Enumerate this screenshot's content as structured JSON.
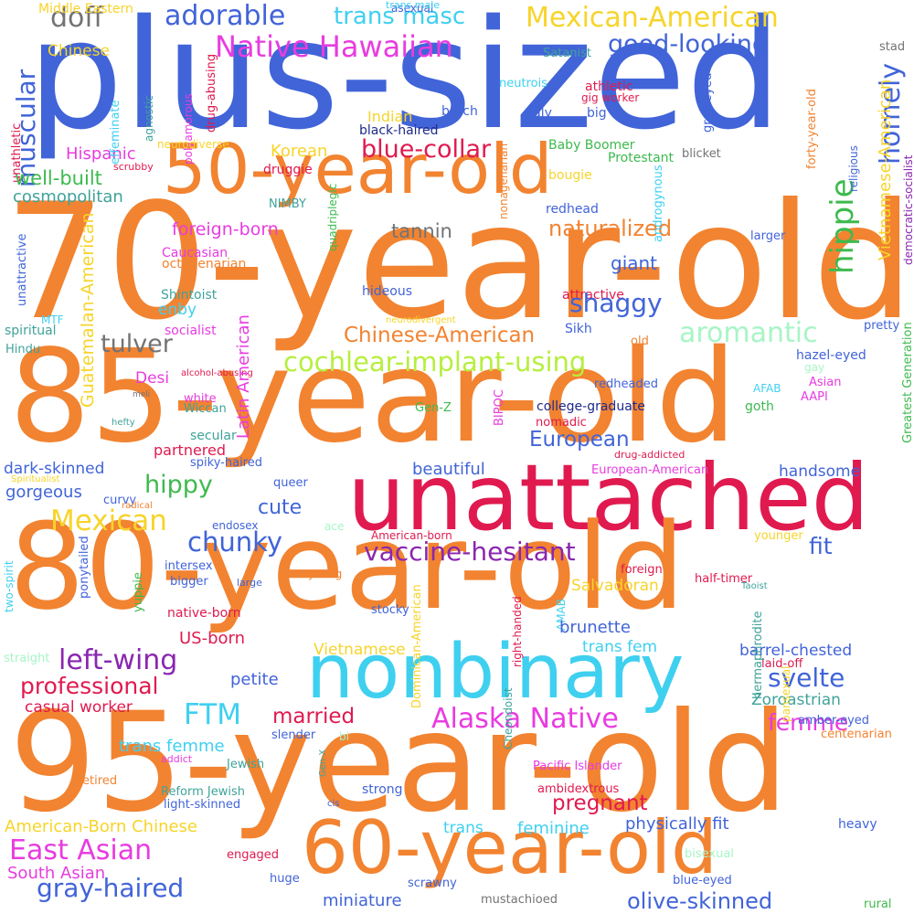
{
  "palette": {
    "orange": "#f28330",
    "blue": "#4164d8",
    "crimson": "#e01a4f",
    "cyan": "#3fd0f0",
    "magenta": "#e83ce0",
    "yellow": "#f7d42a",
    "green": "#3dba4e",
    "mint": "#a7f5c6",
    "lime": "#b6ef3e",
    "purple": "#8a26b0",
    "gray": "#737373",
    "teal": "#3fa39a",
    "navy": "#1e2a8a"
  },
  "words": [
    "plus-sized",
    "70-year-old",
    "85-year-old",
    "unattached",
    "80-year-old",
    "95-year-old",
    "50-year-old",
    "60-year-old",
    "nonbinary",
    "Native Hawaiian",
    "Mexican-American",
    "adorable",
    "trans masc",
    "doff",
    "good-looking",
    "muscular",
    "homely",
    "hippie",
    "Vietnamese-American",
    "Middle Eastern",
    "asexual",
    "trans male",
    "Chinese",
    "Satanist",
    "neutrois",
    "athletic",
    "gig worker",
    "stad",
    "grey-eyed",
    "forty-year-old",
    "democratic-socialist",
    "Indian",
    "butch",
    "ugly",
    "big",
    "black-haired",
    "Hispanic",
    "blue-collar",
    "Korean",
    "unathletic",
    "unattractive",
    "effeminate",
    "agnostic",
    "polyamorous",
    "drug-abusing",
    "neurodiverse",
    "Baby Boomer",
    "Protestant",
    "blicket",
    "scrubby",
    "well-built",
    "druggie",
    "bougie",
    "cosmopolitan",
    "NIMBY",
    "redhead",
    "religious",
    "tannin",
    "naturalized",
    "foreign-born",
    "Caucasian",
    "octogenarian",
    "giant",
    "larger",
    "Shintoist",
    "socialist",
    "hideous",
    "attractive",
    "shaggy",
    "androgynous",
    "spiritual",
    "Sikh",
    "enby",
    "nonagenarian",
    "quadriplegic",
    "neurodivergent",
    "MTF",
    "Hindu",
    "Chinese-American",
    "aromantic",
    "pretty",
    "tulver",
    "old",
    "cochlear-implant-using",
    "hazel-eyed",
    "gay",
    "Desi",
    "alcohol-abusing",
    "AFAB",
    "Asian",
    "redheaded",
    "white",
    "Wiccan",
    "meli",
    "AAPI",
    "hefty",
    "college-graduate",
    "goth",
    "Guatemalan-American",
    "Latin American",
    "Gen-Z",
    "BIPOC",
    "nomadic",
    "European",
    "secular",
    "partnered",
    "drug-addicted",
    "dark-skinned",
    "spiky-haired",
    "Spiritualist",
    "beautiful",
    "European-American",
    "hippy",
    "queer",
    "handsome",
    "curvy",
    "gorgeous",
    "cute",
    "Greatest Generation",
    "radical",
    "Mexican",
    "chunky",
    "endosex",
    "ace",
    "vaccine-hesitant",
    "American-born",
    "younger",
    "fit",
    "half-timer",
    "two-spirit",
    "young",
    "intersex",
    "ponytailed",
    "bigger",
    "large",
    "Taoist",
    "foreign",
    "yuppie",
    "native-born",
    "Salvadoran",
    "stocky",
    "AMAB",
    "right-handed",
    "brunette",
    "US-born",
    "straight",
    "Vietnamese",
    "trans fem",
    "barrel-chested",
    "left-wing",
    "laid-off",
    "petite",
    "professional",
    "svelte",
    "casual worker",
    "Zoroastrian",
    "FTM",
    "married",
    "Alaska Native",
    "femme",
    "amber-eyed",
    "centenarian",
    "bi",
    "trans femme",
    "slender",
    "pansexual",
    "addict",
    "hermaphrodite",
    "Jewish",
    "Pacific Islander",
    "pregnant",
    "retired",
    "Cheondoist",
    "Reform Jewish",
    "Gen-X",
    "strong",
    "light-skinned",
    "cis",
    "ambidextrous",
    "Dominican-American",
    "American-Born Chinese",
    "heavy",
    "physically fit",
    "trans",
    "feminine",
    "East Asian",
    "engaged",
    "bisexual",
    "South Asian",
    "huge",
    "gray-haired",
    "scrawny",
    "blue-eyed",
    "miniature",
    "olive-skinned",
    "mustachioed",
    "rural"
  ]
}
